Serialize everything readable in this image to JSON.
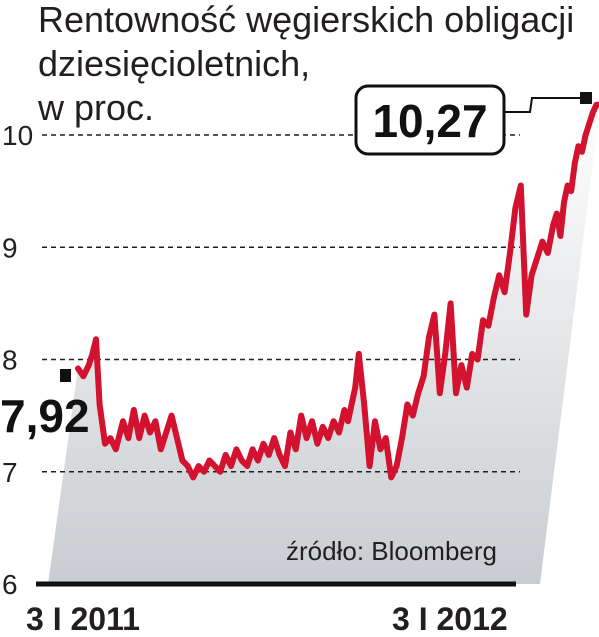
{
  "chart_data": {
    "type": "area",
    "title_lines": [
      "Rentowność węgierskich obligacji",
      "dziesięcioletnich,",
      "w proc."
    ],
    "source": "źródło: Bloomberg",
    "ylim": [
      6,
      10.4
    ],
    "yticks": [
      6,
      7,
      8,
      9,
      10
    ],
    "ytick_labels": [
      "6",
      "7",
      "8",
      "9",
      "10"
    ],
    "xticks": [
      {
        "label": "3 I 2011",
        "x": 0
      },
      {
        "label": "3 I 2012",
        "x": 52
      }
    ],
    "xlim": [
      0,
      58
    ],
    "grid": true,
    "start_label": "7,92",
    "end_label": "10,27",
    "colors": {
      "line": "#d2122e",
      "area_top": "#ffffff",
      "area_bottom": "#c9cdd1",
      "axis": "#111111",
      "grid": "#231f20"
    },
    "series": [
      {
        "x": [
          0,
          0.6,
          1.2,
          1.6,
          2,
          2.4,
          3,
          3.6,
          4.2,
          5,
          5.6,
          6.2,
          6.8,
          7.4,
          8,
          8.6,
          9.2,
          9.8,
          10.4,
          11,
          11.6,
          12.2,
          12.8,
          13.4,
          14,
          14.6,
          15.2,
          15.8,
          16.4,
          17,
          17.6,
          18.2,
          18.8,
          19.4,
          20,
          20.6,
          21.2,
          21.8,
          22.4,
          23,
          23.6,
          24.2,
          24.8,
          25.4,
          26,
          26.6,
          27.2,
          27.8,
          28.4,
          29,
          29.6,
          30,
          30.4,
          30.8,
          31.2,
          31.8,
          32.4,
          33,
          33.6,
          34.2,
          34.8,
          35.4,
          36,
          36.6,
          37.2,
          37.8,
          38.4,
          39,
          39.6,
          40.2,
          40.8,
          41.4,
          42,
          42.6,
          43.2,
          43.8,
          44.4,
          45,
          45.6,
          46.2,
          46.8,
          47.4,
          48,
          48.6,
          49.2,
          49.8,
          50.4,
          51,
          51.6,
          52.2,
          52.8,
          53.2,
          53.6,
          54,
          54.4,
          54.8,
          55.2,
          55.6,
          56,
          56.4,
          56.8,
          57.2,
          57.6,
          58
        ],
        "values": [
          7.92,
          7.85,
          7.95,
          8.05,
          8.18,
          7.6,
          7.25,
          7.3,
          7.2,
          7.45,
          7.3,
          7.55,
          7.3,
          7.5,
          7.35,
          7.45,
          7.2,
          7.35,
          7.5,
          7.3,
          7.1,
          7.05,
          6.95,
          7.05,
          7.0,
          7.1,
          7.05,
          7.0,
          7.15,
          7.05,
          7.2,
          7.1,
          7.05,
          7.2,
          7.1,
          7.25,
          7.15,
          7.3,
          7.15,
          7.05,
          7.35,
          7.2,
          7.5,
          7.3,
          7.45,
          7.25,
          7.4,
          7.3,
          7.45,
          7.35,
          7.55,
          7.45,
          7.6,
          7.75,
          8.05,
          7.6,
          7.05,
          7.45,
          7.2,
          7.3,
          6.95,
          7.05,
          7.3,
          7.6,
          7.5,
          7.7,
          7.85,
          8.2,
          8.4,
          7.7,
          8.05,
          8.5,
          7.7,
          7.95,
          7.75,
          8.05,
          8.0,
          8.35,
          8.3,
          8.55,
          8.75,
          8.6,
          8.95,
          9.35,
          9.55,
          8.4,
          8.75,
          8.9,
          9.05,
          8.95,
          9.2,
          9.3,
          9.1,
          9.4,
          9.55,
          9.5,
          9.75,
          9.9,
          9.85,
          10.0,
          10.1,
          10.2,
          10.27,
          10.27
        ]
      }
    ]
  }
}
